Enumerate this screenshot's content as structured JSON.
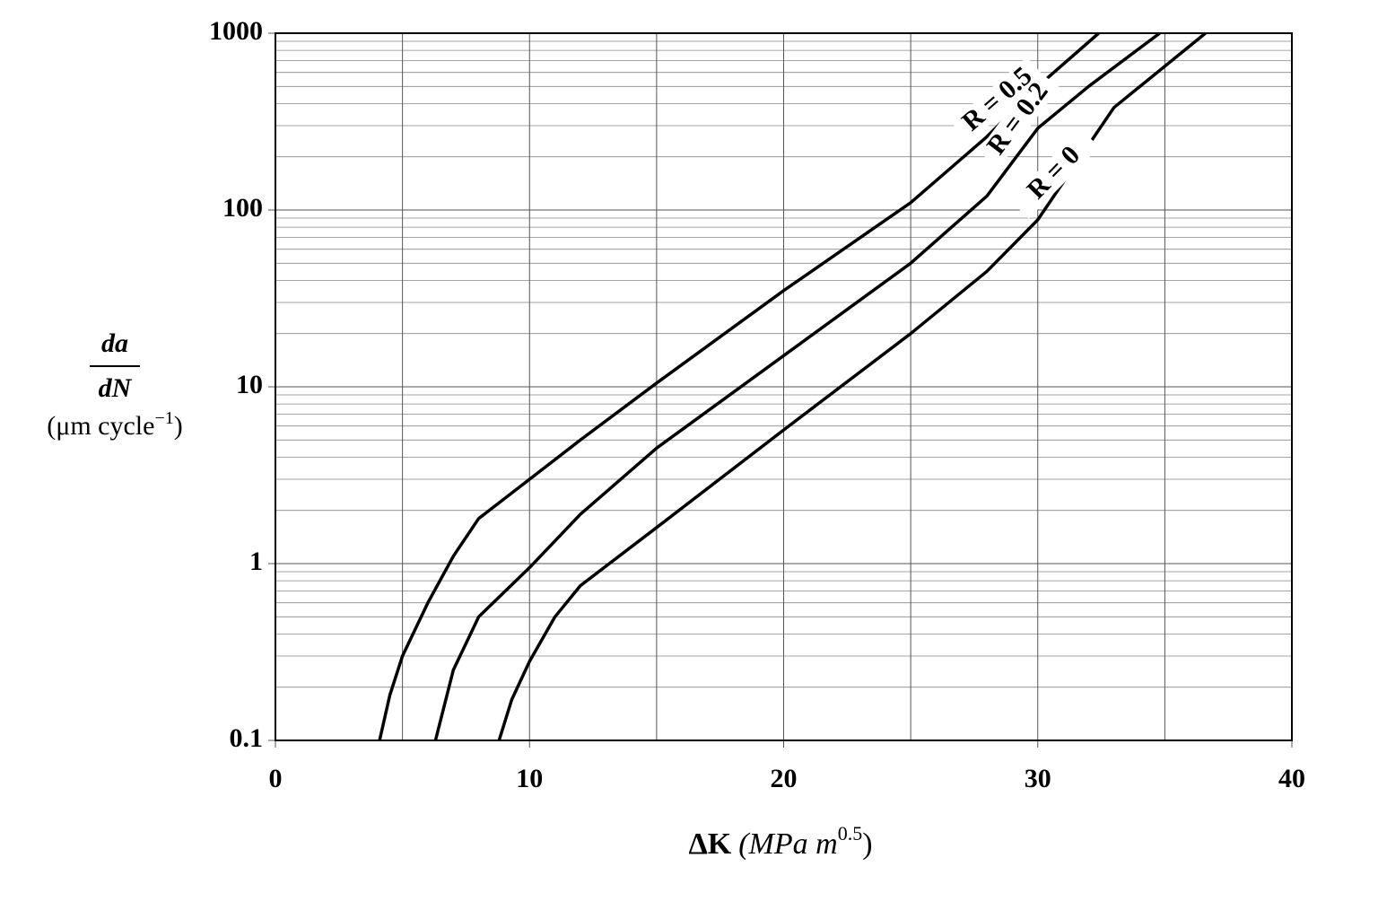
{
  "chart_data": {
    "type": "line",
    "x_label": {
      "symbol": "ΔK",
      "unit": "(MPa m",
      "exponent": "0.5",
      "close": ")"
    },
    "y_label": {
      "numerator": "da",
      "denominator": "dN",
      "unit": "(μm cycle",
      "exponent": "−1",
      "close": ")"
    },
    "xlim": [
      0,
      40
    ],
    "xticks": [
      0,
      10,
      20,
      30,
      40
    ],
    "ylim": [
      0.1,
      1000
    ],
    "yticks": [
      0.1,
      1,
      10,
      100,
      1000
    ],
    "y_scale": "log",
    "grid": true,
    "minor_grid": true,
    "color": "#000000",
    "series": [
      {
        "name": "R = 0.5",
        "x": [
          4.1,
          4.5,
          5,
          6,
          7,
          8,
          10,
          12,
          15,
          20,
          25,
          28,
          30,
          32.4
        ],
        "values": [
          0.1,
          0.18,
          0.3,
          0.6,
          1.1,
          1.8,
          3.0,
          5.0,
          10.5,
          35,
          110,
          260,
          500,
          1000
        ]
      },
      {
        "name": "R = 0.2",
        "x": [
          6.3,
          7,
          8,
          10,
          12,
          15,
          20,
          25,
          28,
          30,
          32,
          34.8
        ],
        "values": [
          0.1,
          0.25,
          0.5,
          0.95,
          1.9,
          4.5,
          15,
          50,
          120,
          290,
          500,
          1000
        ]
      },
      {
        "name": "R = 0",
        "x": [
          8.8,
          9.3,
          10,
          11,
          12,
          15,
          20,
          25,
          28,
          30,
          33,
          36.6
        ],
        "values": [
          0.1,
          0.17,
          0.28,
          0.5,
          0.75,
          1.6,
          5.7,
          20,
          45,
          88,
          380,
          1000
        ]
      }
    ]
  }
}
